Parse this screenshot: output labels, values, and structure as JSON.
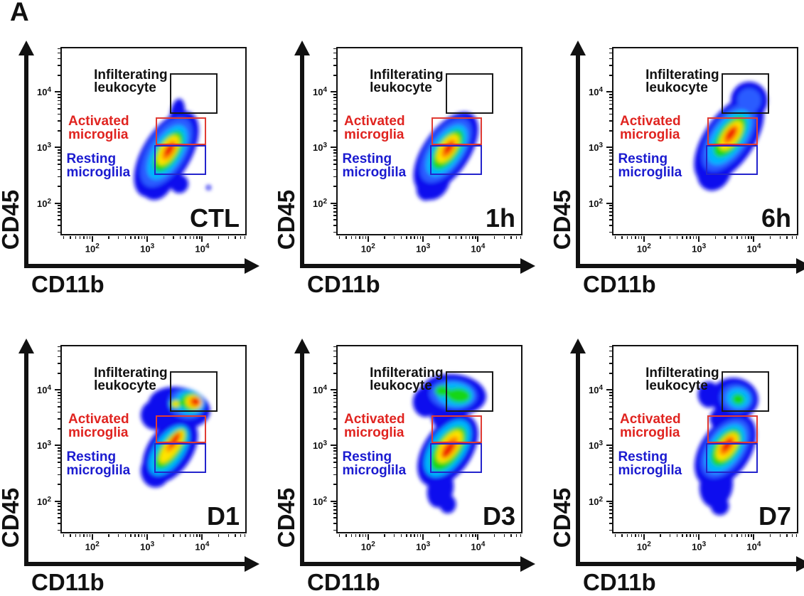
{
  "figure": {
    "panel_letter": "A"
  },
  "axes": {
    "x_label": "CD11b",
    "y_label": "CD45",
    "tick_base": "10",
    "tick_exponents": [
      2,
      3,
      4
    ],
    "log_min": 1.42,
    "log_max": 4.81
  },
  "gate_labels": {
    "infiltrating": "Infilterating\nleukocyte",
    "activated": "Activated\nmicroglia",
    "resting": "Resting\nmicroglila"
  },
  "colors": {
    "gate_infiltrating": "#1a1a1a",
    "gate_activated": "#e03c34",
    "gate_resting": "#2424cc",
    "label_infiltrating": "#111111",
    "label_activated": "#e02420",
    "label_resting": "#1b1bd0",
    "density_scale": [
      "#0909ee",
      "#2b5bff",
      "#00b4ff",
      "#13d613",
      "#ffe400",
      "#ff8a00",
      "#ee1200"
    ]
  },
  "panels": [
    {
      "label": "CTL",
      "blobs": [
        [
          0,
          57,
          57,
          13,
          26,
          32
        ],
        [
          0,
          52,
          70,
          9,
          12,
          20
        ],
        [
          0,
          63,
          36,
          4,
          9,
          8
        ],
        [
          0,
          64,
          73,
          5,
          5,
          0
        ],
        [
          0,
          80,
          75,
          1.3,
          1.3,
          0
        ],
        [
          1,
          57,
          56,
          10.5,
          21,
          32
        ],
        [
          2,
          57.5,
          56,
          8,
          16.5,
          32
        ],
        [
          3,
          58,
          55.5,
          6,
          12.5,
          32
        ],
        [
          4,
          58,
          55,
          4.2,
          9,
          32
        ],
        [
          5,
          58.5,
          55,
          2.8,
          6,
          32
        ],
        [
          6,
          58.5,
          54.5,
          1.7,
          3.8,
          32
        ]
      ]
    },
    {
      "label": "1h",
      "blobs": [
        [
          0,
          59,
          56,
          12.5,
          25,
          35
        ],
        [
          0,
          52,
          71,
          9,
          11,
          25
        ],
        [
          0,
          48,
          76,
          5,
          6,
          0
        ],
        [
          1,
          59,
          55,
          10,
          20,
          35
        ],
        [
          2,
          59.5,
          55,
          8,
          16,
          35
        ],
        [
          3,
          60,
          54.5,
          6,
          12.5,
          35
        ],
        [
          4,
          60,
          54,
          4.2,
          8.8,
          35
        ],
        [
          5,
          60.5,
          54,
          2.8,
          5.8,
          35
        ],
        [
          6,
          60.5,
          53.5,
          1.7,
          3.6,
          35
        ]
      ]
    },
    {
      "label": "6h",
      "blobs": [
        [
          0,
          63,
          49,
          13.5,
          27,
          35
        ],
        [
          0,
          74,
          28,
          10,
          10,
          25
        ],
        [
          0,
          55,
          66,
          9,
          11,
          25
        ],
        [
          0,
          57,
          70,
          1.3,
          1.3,
          0
        ],
        [
          1,
          63,
          48,
          10.5,
          21,
          35
        ],
        [
          1,
          74,
          28,
          6.5,
          6.5,
          25
        ],
        [
          2,
          63,
          48,
          8.5,
          17,
          35
        ],
        [
          3,
          63.5,
          47.5,
          6.3,
          13,
          35
        ],
        [
          4,
          64,
          47,
          4.3,
          9,
          35
        ],
        [
          5,
          64,
          46.5,
          2.9,
          6,
          35
        ],
        [
          6,
          64,
          46,
          1.8,
          3.9,
          35
        ]
      ]
    },
    {
      "label": "D1",
      "blobs": [
        [
          0,
          64,
          33,
          17,
          11,
          10
        ],
        [
          0,
          51,
          37,
          8,
          8,
          0
        ],
        [
          0,
          59,
          56,
          12,
          20,
          35
        ],
        [
          0,
          51,
          67,
          8,
          9,
          0
        ],
        [
          0,
          63,
          45,
          9,
          8,
          0
        ],
        [
          1,
          68,
          31,
          10,
          8,
          12
        ],
        [
          2,
          69.5,
          30.5,
          8,
          6.5,
          12
        ],
        [
          3,
          70.5,
          30,
          6,
          5,
          12
        ],
        [
          4,
          72,
          30,
          4.5,
          3.6,
          12
        ],
        [
          5,
          72.5,
          30,
          3.2,
          2.6,
          12
        ],
        [
          6,
          73,
          29.5,
          2.2,
          1.9,
          12
        ],
        [
          3,
          62,
          31,
          3.2,
          2.6,
          0
        ],
        [
          4,
          62,
          31,
          1.9,
          1.5,
          0
        ],
        [
          2,
          58.5,
          56,
          8,
          15.5,
          35
        ],
        [
          3,
          59.5,
          55,
          5.5,
          13,
          35
        ],
        [
          4,
          60,
          54,
          3.7,
          10.5,
          35
        ],
        [
          5,
          61,
          51.5,
          2.3,
          6.5,
          35
        ],
        [
          6,
          61.5,
          50.5,
          1.4,
          4.2,
          35
        ]
      ]
    },
    {
      "label": "D3",
      "blobs": [
        [
          0,
          63,
          26,
          18,
          11,
          5
        ],
        [
          0,
          48,
          30,
          7,
          8,
          0
        ],
        [
          0,
          59,
          38,
          8,
          7,
          0
        ],
        [
          0,
          60,
          56,
          13,
          22,
          35
        ],
        [
          0,
          56,
          77,
          7,
          10,
          15
        ],
        [
          0,
          60,
          85,
          4.5,
          5,
          0
        ],
        [
          1,
          63,
          26,
          13,
          8,
          5
        ],
        [
          2,
          64,
          26,
          10,
          6.5,
          5
        ],
        [
          3,
          66,
          26.5,
          6.5,
          4,
          5
        ],
        [
          3,
          57,
          24,
          4,
          3,
          0
        ],
        [
          2,
          60,
          55,
          9.5,
          17.5,
          35
        ],
        [
          3,
          60.5,
          55,
          7,
          14,
          35
        ],
        [
          4,
          61,
          54,
          4.8,
          10,
          35
        ],
        [
          5,
          61,
          54.5,
          3.2,
          7,
          35
        ],
        [
          6,
          60.5,
          55.5,
          1.9,
          5,
          35
        ]
      ]
    },
    {
      "label": "D7",
      "blobs": [
        [
          0,
          66,
          28,
          13,
          11,
          10
        ],
        [
          0,
          52,
          26,
          6,
          7,
          0
        ],
        [
          0,
          61,
          39,
          8.5,
          7,
          0
        ],
        [
          0,
          61,
          56,
          13.5,
          22,
          35
        ],
        [
          0,
          56,
          75,
          9,
          12,
          10
        ],
        [
          0,
          58,
          86,
          5,
          5,
          0
        ],
        [
          1,
          67,
          28,
          9,
          7.5,
          10
        ],
        [
          2,
          68,
          28,
          6.5,
          5.5,
          10
        ],
        [
          3,
          68,
          28.5,
          3.5,
          3,
          10
        ],
        [
          1,
          61,
          55,
          10.5,
          18,
          35
        ],
        [
          2,
          61,
          55,
          8.5,
          15,
          35
        ],
        [
          3,
          61.5,
          54.5,
          6.5,
          11.5,
          35
        ],
        [
          4,
          62,
          54,
          4.4,
          8.5,
          35
        ],
        [
          5,
          62,
          53.5,
          3,
          6,
          35
        ],
        [
          6,
          62,
          53,
          1.8,
          4,
          35
        ]
      ]
    }
  ],
  "chart_data": {
    "type": "scatter",
    "subtype": "flow-cytometry-density-pseudocolor",
    "x_axis": "CD11b (log10 fluorescence)",
    "y_axis": "CD45 (log10 fluorescence)",
    "x_range_log10": [
      1.42,
      4.81
    ],
    "y_range_log10": [
      1.42,
      4.81
    ],
    "tick_values": [
      100,
      1000,
      10000
    ],
    "gates": [
      {
        "name": "Infilterating leukocyte",
        "color": "#1a1a1a",
        "cd11b_log10": [
          3.42,
          4.29
        ],
        "cd45_log10": [
          3.62,
          4.35
        ]
      },
      {
        "name": "Activated microglia",
        "color": "#e03c34",
        "cd11b_log10": [
          3.15,
          4.08
        ],
        "cd45_log10": [
          3.04,
          3.56
        ]
      },
      {
        "name": "Resting microglila",
        "color": "#2424cc",
        "cd11b_log10": [
          3.12,
          4.09
        ],
        "cd45_log10": [
          2.5,
          3.04
        ]
      }
    ],
    "panels": [
      {
        "label": "CTL",
        "populations": [
          {
            "name": "main microglia cloud",
            "peak_cd11b_log10": 3.4,
            "peak_cd45_log10": 2.96,
            "density": "high, diagonal ellipse spanning resting/activated gates"
          }
        ]
      },
      {
        "label": "1h",
        "populations": [
          {
            "name": "main microglia cloud",
            "peak_cd11b_log10": 3.47,
            "peak_cd45_log10": 3.0,
            "density": "high, diagonal ellipse similar to CTL"
          }
        ]
      },
      {
        "label": "6h",
        "populations": [
          {
            "name": "main microglia cloud",
            "peak_cd11b_log10": 3.59,
            "peak_cd45_log10": 3.25,
            "density": "high, shifted up into activated gate with upper shoulder entering leukocyte gate"
          }
        ]
      },
      {
        "label": "D1",
        "populations": [
          {
            "name": "infiltrating leukocyte peak",
            "peak_cd11b_log10": 3.89,
            "peak_cd45_log10": 3.81,
            "density": "high red hotspot inside leukocyte gate"
          },
          {
            "name": "microglia band",
            "peak_cd11b_log10": 3.47,
            "peak_cd45_log10": 3.0,
            "density": "elongated yellow-red band across activated/resting gates"
          }
        ]
      },
      {
        "label": "D3",
        "populations": [
          {
            "name": "upper diffuse leukocyte cloud",
            "peak_cd11b_log10": 3.56,
            "peak_cd45_log10": 3.93,
            "density": "broad green/cyan mass around leukocyte gate"
          },
          {
            "name": "main microglia band",
            "peak_cd11b_log10": 3.47,
            "peak_cd45_log10": 2.93,
            "density": "high red core at activated/resting boundary with tail to low CD45"
          }
        ]
      },
      {
        "label": "D7",
        "populations": [
          {
            "name": "upper leukocyte lobe",
            "peak_cd11b_log10": 3.69,
            "peak_cd45_log10": 3.86,
            "density": "moderate blue/cyan lobe near leukocyte gate"
          },
          {
            "name": "main microglia band",
            "peak_cd11b_log10": 3.52,
            "peak_cd45_log10": 3.01,
            "density": "high red core in activated gate with tail to low CD45"
          }
        ]
      }
    ]
  }
}
